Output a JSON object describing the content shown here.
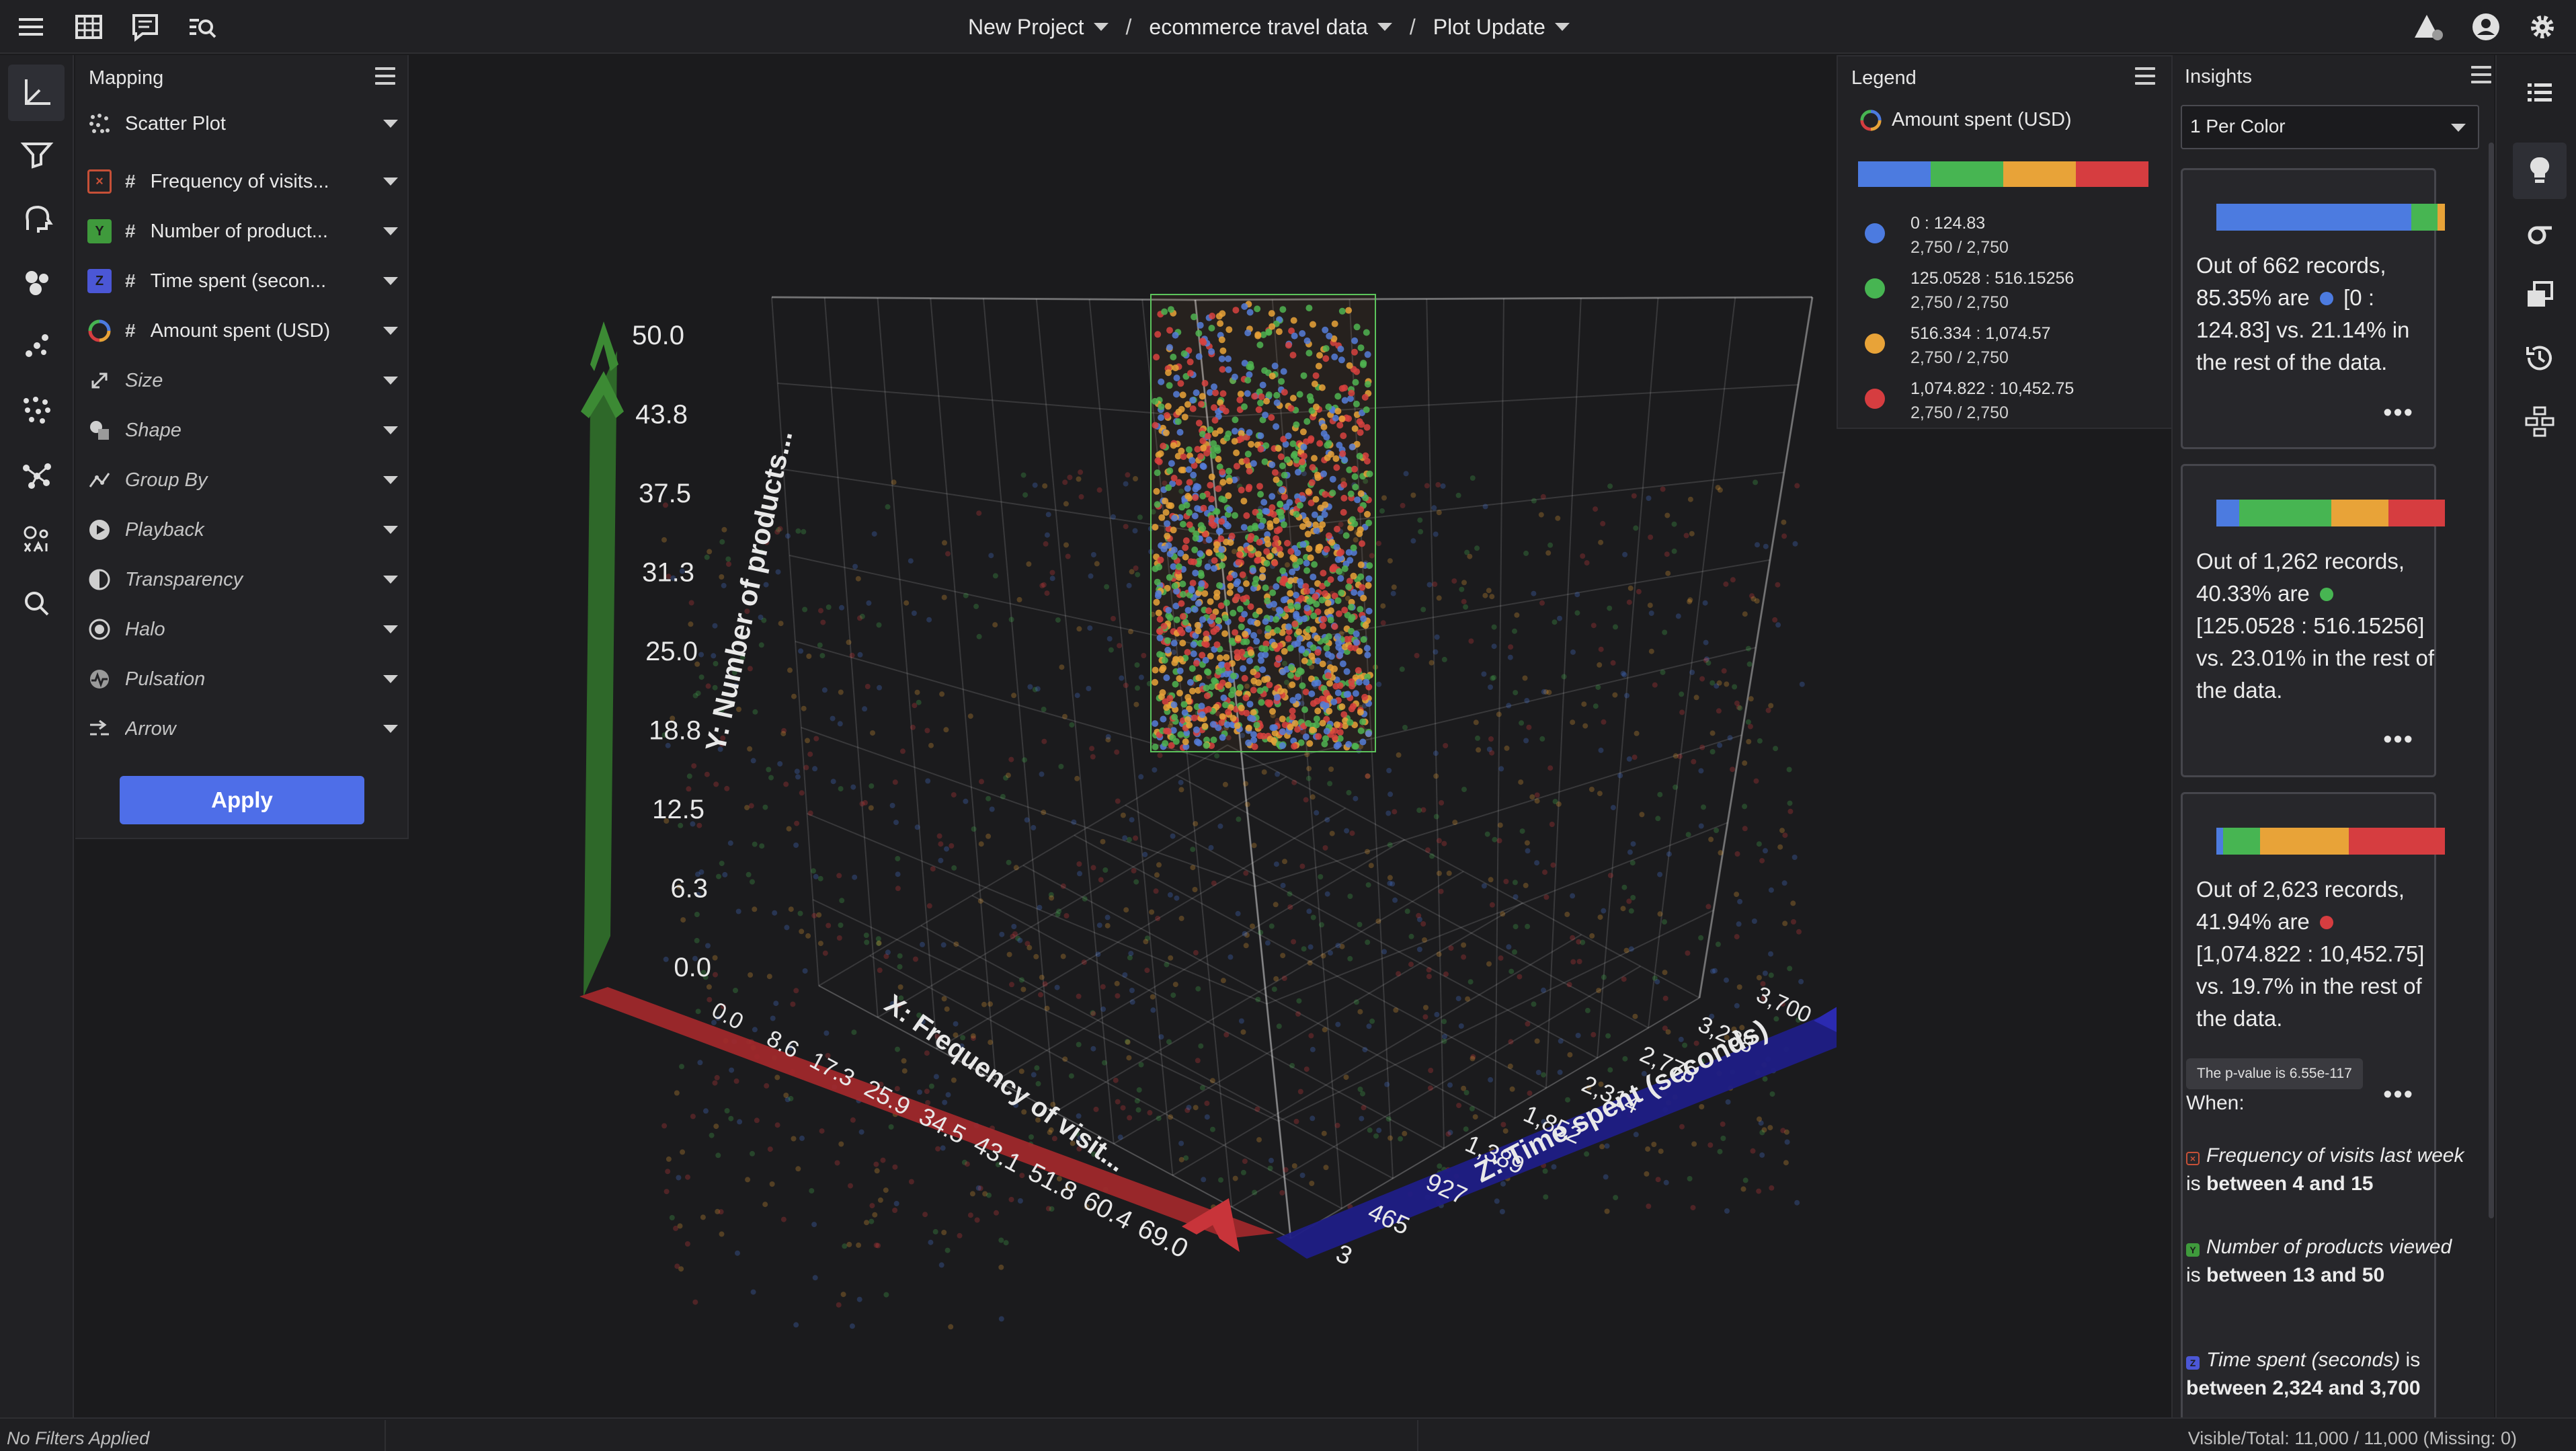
{
  "topbar": {
    "breadcrumb": [
      "New Project",
      "ecommerce travel data",
      "Plot Update"
    ]
  },
  "mapping": {
    "title": "Mapping",
    "plot_type": "Scatter Plot",
    "rows": [
      {
        "label": "Frequency of visits...",
        "axis": "X",
        "color": "#c65037"
      },
      {
        "label": "Number of product...",
        "axis": "Y",
        "color": "#3f9a3c"
      },
      {
        "label": "Time spent (secon...",
        "axis": "Z",
        "color": "#4b57d6"
      },
      {
        "label": "Amount spent (USD)"
      }
    ],
    "options": [
      "Size",
      "Shape",
      "Group By",
      "Playback",
      "Transparency",
      "Halo",
      "Pulsation",
      "Arrow"
    ],
    "apply_label": "Apply"
  },
  "plot": {
    "x_axis_label": "X: Frequency of visit...",
    "y_axis_label": "Y: Number of products...",
    "z_axis_label": "Z: Time spent (seconds)",
    "x_ticks": [
      "0.0",
      "8.6",
      "17.3",
      "25.9",
      "34.5",
      "43.1",
      "51.8",
      "60.4",
      "69.0"
    ],
    "y_ticks": [
      "50.0",
      "43.8",
      "37.5",
      "31.3",
      "25.0",
      "18.8",
      "12.5",
      "6.3",
      "0.0"
    ],
    "z_ticks": [
      "3,700",
      "3,238",
      "2,776",
      "2,314",
      "1,852",
      "1,389",
      "927",
      "465",
      "3"
    ],
    "colors": {
      "x_axis": "#a3282b",
      "y_axis": "#2f6d2a",
      "z_axis": "#1f1d86"
    }
  },
  "legend": {
    "title": "Legend",
    "field": "Amount spent (USD)",
    "items": [
      {
        "range": "0 : 124.83",
        "count": "2,750 / 2,750",
        "color": "#4c7be0"
      },
      {
        "range": "125.0528 : 516.15256",
        "count": "2,750 / 2,750",
        "color": "#47b552"
      },
      {
        "range": "516.334 : 1,074.57",
        "count": "2,750 / 2,750",
        "color": "#e8a338"
      },
      {
        "range": "1,074.822 : 10,452.75",
        "count": "2,750 / 2,750",
        "color": "#d63d40"
      }
    ]
  },
  "insights": {
    "title": "Insights",
    "select_value": "1 Per Color",
    "cards": [
      {
        "bar": [
          85.35,
          11.5,
          3.15,
          0
        ],
        "text_pre": "Out of 662 records, 85.35% are",
        "text_post": "[0 : 124.83] vs. 21.14% in the rest of the data.",
        "dot_color": "#4c7be0",
        "more": "•••"
      },
      {
        "bar": [
          10,
          40.33,
          25,
          24.67
        ],
        "text_pre": "Out of 1,262 records, 40.33% are",
        "text_post": "[125.0528 : 516.15256] vs. 23.01% in the rest of the data.",
        "dot_color": "#47b552",
        "more": "•••"
      },
      {
        "bar": [
          3,
          16,
          39.06,
          41.94
        ],
        "text_pre": "Out of 2,623 records, 41.94% are",
        "text_post": "[1,074.822 : 10,452.75] vs. 19.7% in the rest of the data.",
        "dot_color": "#d63d40",
        "more": "•••"
      }
    ],
    "tooltip": "The p-value is 6.55e-117",
    "when_label": "When:",
    "conditions": [
      {
        "axis": "X",
        "name": "Frequency of visits last week",
        "verb": "is",
        "range": "between 4 and 15",
        "color": "#c65037"
      },
      {
        "axis": "Y",
        "name": "Number of products viewed",
        "verb": "is",
        "range": "between 13 and 50",
        "color": "#3f9a3c"
      },
      {
        "axis": "Z",
        "name": "Time spent (seconds)",
        "verb": "is",
        "range": "between 2,324 and 3,700",
        "color": "#4b57d6"
      }
    ]
  },
  "status": {
    "filters": "No Filters Applied",
    "counts": "Visible/Total: 11,000 / 11,000 (Missing: 0)"
  }
}
